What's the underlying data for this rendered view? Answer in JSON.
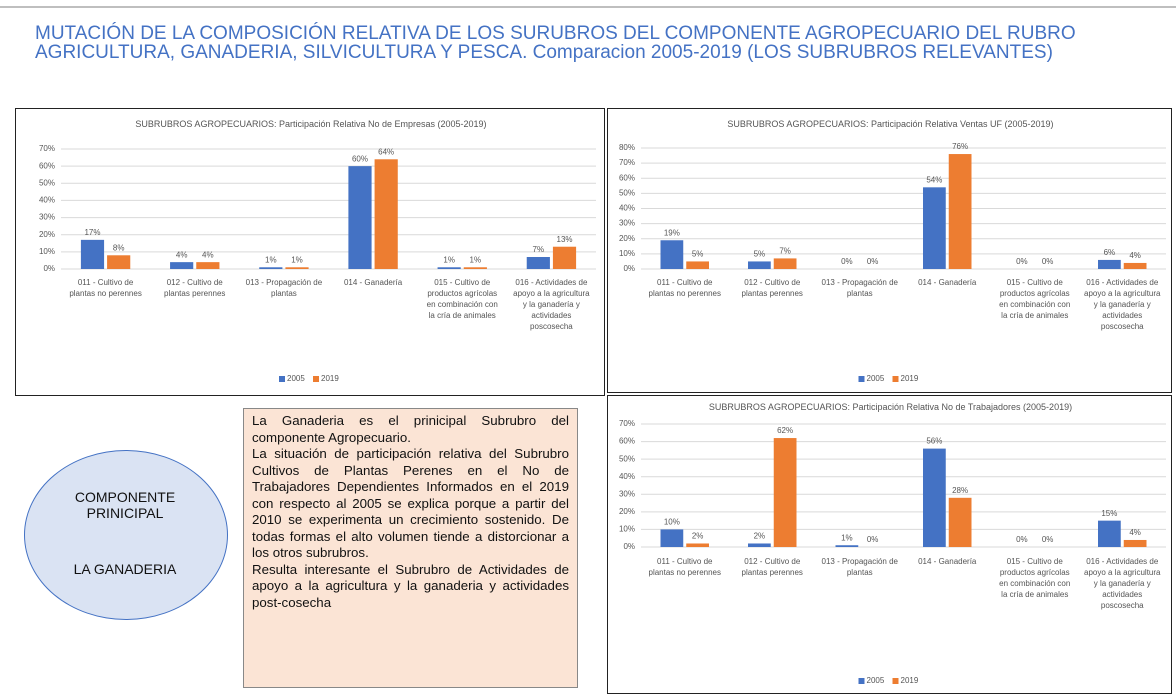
{
  "slide": {
    "title": "MUTACIÓN DE LA COMPOSICIÓN RELATIVA  DE LOS  SURUBROS DEL COMPONENTE AGROPECUARIO DEL RUBRO AGRICULTURA, GANADERIA, SILVICULTURA Y PESCA. Comparacion 2005-2019 (LOS SUBRUBROS RELEVANTES)",
    "circle": [
      "COMPONENTE PRINICIPAL",
      "LA GANADERIA"
    ],
    "note": [
      "La Ganaderia es el prinicipal Subrubro del componente Agropecuario.",
      "La situación de participación relativa del Subrubro Cultivos de Plantas Perenes en el No de Trabajadores Dependientes Informados en el 2019 con respecto al 2005 se explica porque a partir del 2010 se experimenta un crecimiento sostenido. De todas formas el alto volumen tiende a distorcionar a los otros subrubros.",
      "Resulta interesante el Subrubro de Actividades de apoyo a la agricultura y la ganaderia y actividades post-cosecha"
    ]
  },
  "chart_data": [
    {
      "type": "bar",
      "title": "SUBRUBROS AGROPECUARIOS: Participación Relativa No de Empresas (2005-2019)",
      "categories": [
        "011 - Cultivo de plantas no perennes",
        "012 - Cultivo de plantas perennes",
        "013 - Propagación de plantas",
        "014 - Ganadería",
        "015 - Cultivo de productos agrícolas en combinación con la cría de animales",
        "016 - Actividades de apoyo a la agricultura y la ganadería y actividades poscosecha"
      ],
      "series": [
        {
          "name": "2005",
          "color": "#4472c4",
          "values": [
            17,
            4,
            1,
            60,
            1,
            7
          ],
          "value_labels": [
            "17%",
            "4%",
            "1%",
            "60%",
            "1%",
            "7%"
          ]
        },
        {
          "name": "2019",
          "color": "#ed7d31",
          "values": [
            8,
            4,
            1,
            64,
            1,
            13
          ],
          "value_labels": [
            "8%",
            "4%",
            "1%",
            "64%",
            "1%",
            "13%"
          ]
        }
      ],
      "ylim": [
        0,
        70
      ],
      "yticks": [
        {
          "value": 0,
          "label": "0%"
        },
        {
          "value": 10,
          "label": "10%"
        },
        {
          "value": 20,
          "label": "20%"
        },
        {
          "value": 30,
          "label": "30%"
        },
        {
          "value": 40,
          "label": "40%"
        },
        {
          "value": 50,
          "label": "50%"
        },
        {
          "value": 60,
          "label": "60%"
        },
        {
          "value": 70,
          "label": "70%"
        }
      ],
      "grid": true,
      "legend": "bottom"
    },
    {
      "type": "bar",
      "title": "SUBRUBROS AGROPECUARIOS: Participación Relativa Ventas UF (2005-2019)",
      "categories": [
        "011 - Cultivo de plantas no perennes",
        "012 - Cultivo de plantas perennes",
        "013 - Propagación de plantas",
        "014 - Ganadería",
        "015 - Cultivo de productos agrícolas en combinación con la cría de animales",
        "016 - Actividades de apoyo a la agricultura y la ganadería y actividades poscosecha"
      ],
      "series": [
        {
          "name": "2005",
          "color": "#4472c4",
          "values": [
            19,
            5,
            0,
            54,
            0,
            6
          ],
          "value_labels": [
            "19%",
            "5%",
            "0%",
            "54%",
            "0%",
            "6%"
          ]
        },
        {
          "name": "2019",
          "color": "#ed7d31",
          "values": [
            5,
            7,
            0,
            76,
            0,
            4
          ],
          "value_labels": [
            "5%",
            "7%",
            "0%",
            "76%",
            "0%",
            "4%"
          ]
        }
      ],
      "ylim": [
        0,
        80
      ],
      "yticks": [
        {
          "value": 0,
          "label": "0%"
        },
        {
          "value": 10,
          "label": "10%"
        },
        {
          "value": 20,
          "label": "20%"
        },
        {
          "value": 30,
          "label": "30%"
        },
        {
          "value": 40,
          "label": "40%"
        },
        {
          "value": 50,
          "label": "50%"
        },
        {
          "value": 60,
          "label": "60%"
        },
        {
          "value": 70,
          "label": "70%"
        },
        {
          "value": 80,
          "label": "80%"
        }
      ],
      "grid": true,
      "legend": "bottom"
    },
    {
      "type": "bar",
      "title": "SUBRUBROS AGROPECUARIOS: Participación Relativa No de Trabajadores (2005-2019)",
      "categories": [
        "011 - Cultivo de plantas no perennes",
        "012 - Cultivo de plantas perennes",
        "013 - Propagación de plantas",
        "014 - Ganadería",
        "015 - Cultivo de productos agrícolas en combinación con la cría de animales",
        "016 - Actividades de apoyo a la agricultura y la ganadería y actividades poscosecha"
      ],
      "series": [
        {
          "name": "2005",
          "color": "#4472c4",
          "values": [
            10,
            2,
            1,
            56,
            0,
            15
          ],
          "value_labels": [
            "10%",
            "2%",
            "1%",
            "56%",
            "0%",
            "15%"
          ]
        },
        {
          "name": "2019",
          "color": "#ed7d31",
          "values": [
            2,
            62,
            0,
            28,
            0,
            4
          ],
          "value_labels": [
            "2%",
            "62%",
            "0%",
            "28%",
            "0%",
            "4%"
          ]
        }
      ],
      "ylim": [
        0,
        70
      ],
      "yticks": [
        {
          "value": 0,
          "label": "0%"
        },
        {
          "value": 10,
          "label": "10%"
        },
        {
          "value": 20,
          "label": "20%"
        },
        {
          "value": 30,
          "label": "30%"
        },
        {
          "value": 40,
          "label": "40%"
        },
        {
          "value": 50,
          "label": "50%"
        },
        {
          "value": 60,
          "label": "60%"
        },
        {
          "value": 70,
          "label": "70%"
        }
      ],
      "grid": true,
      "legend": "bottom"
    }
  ]
}
